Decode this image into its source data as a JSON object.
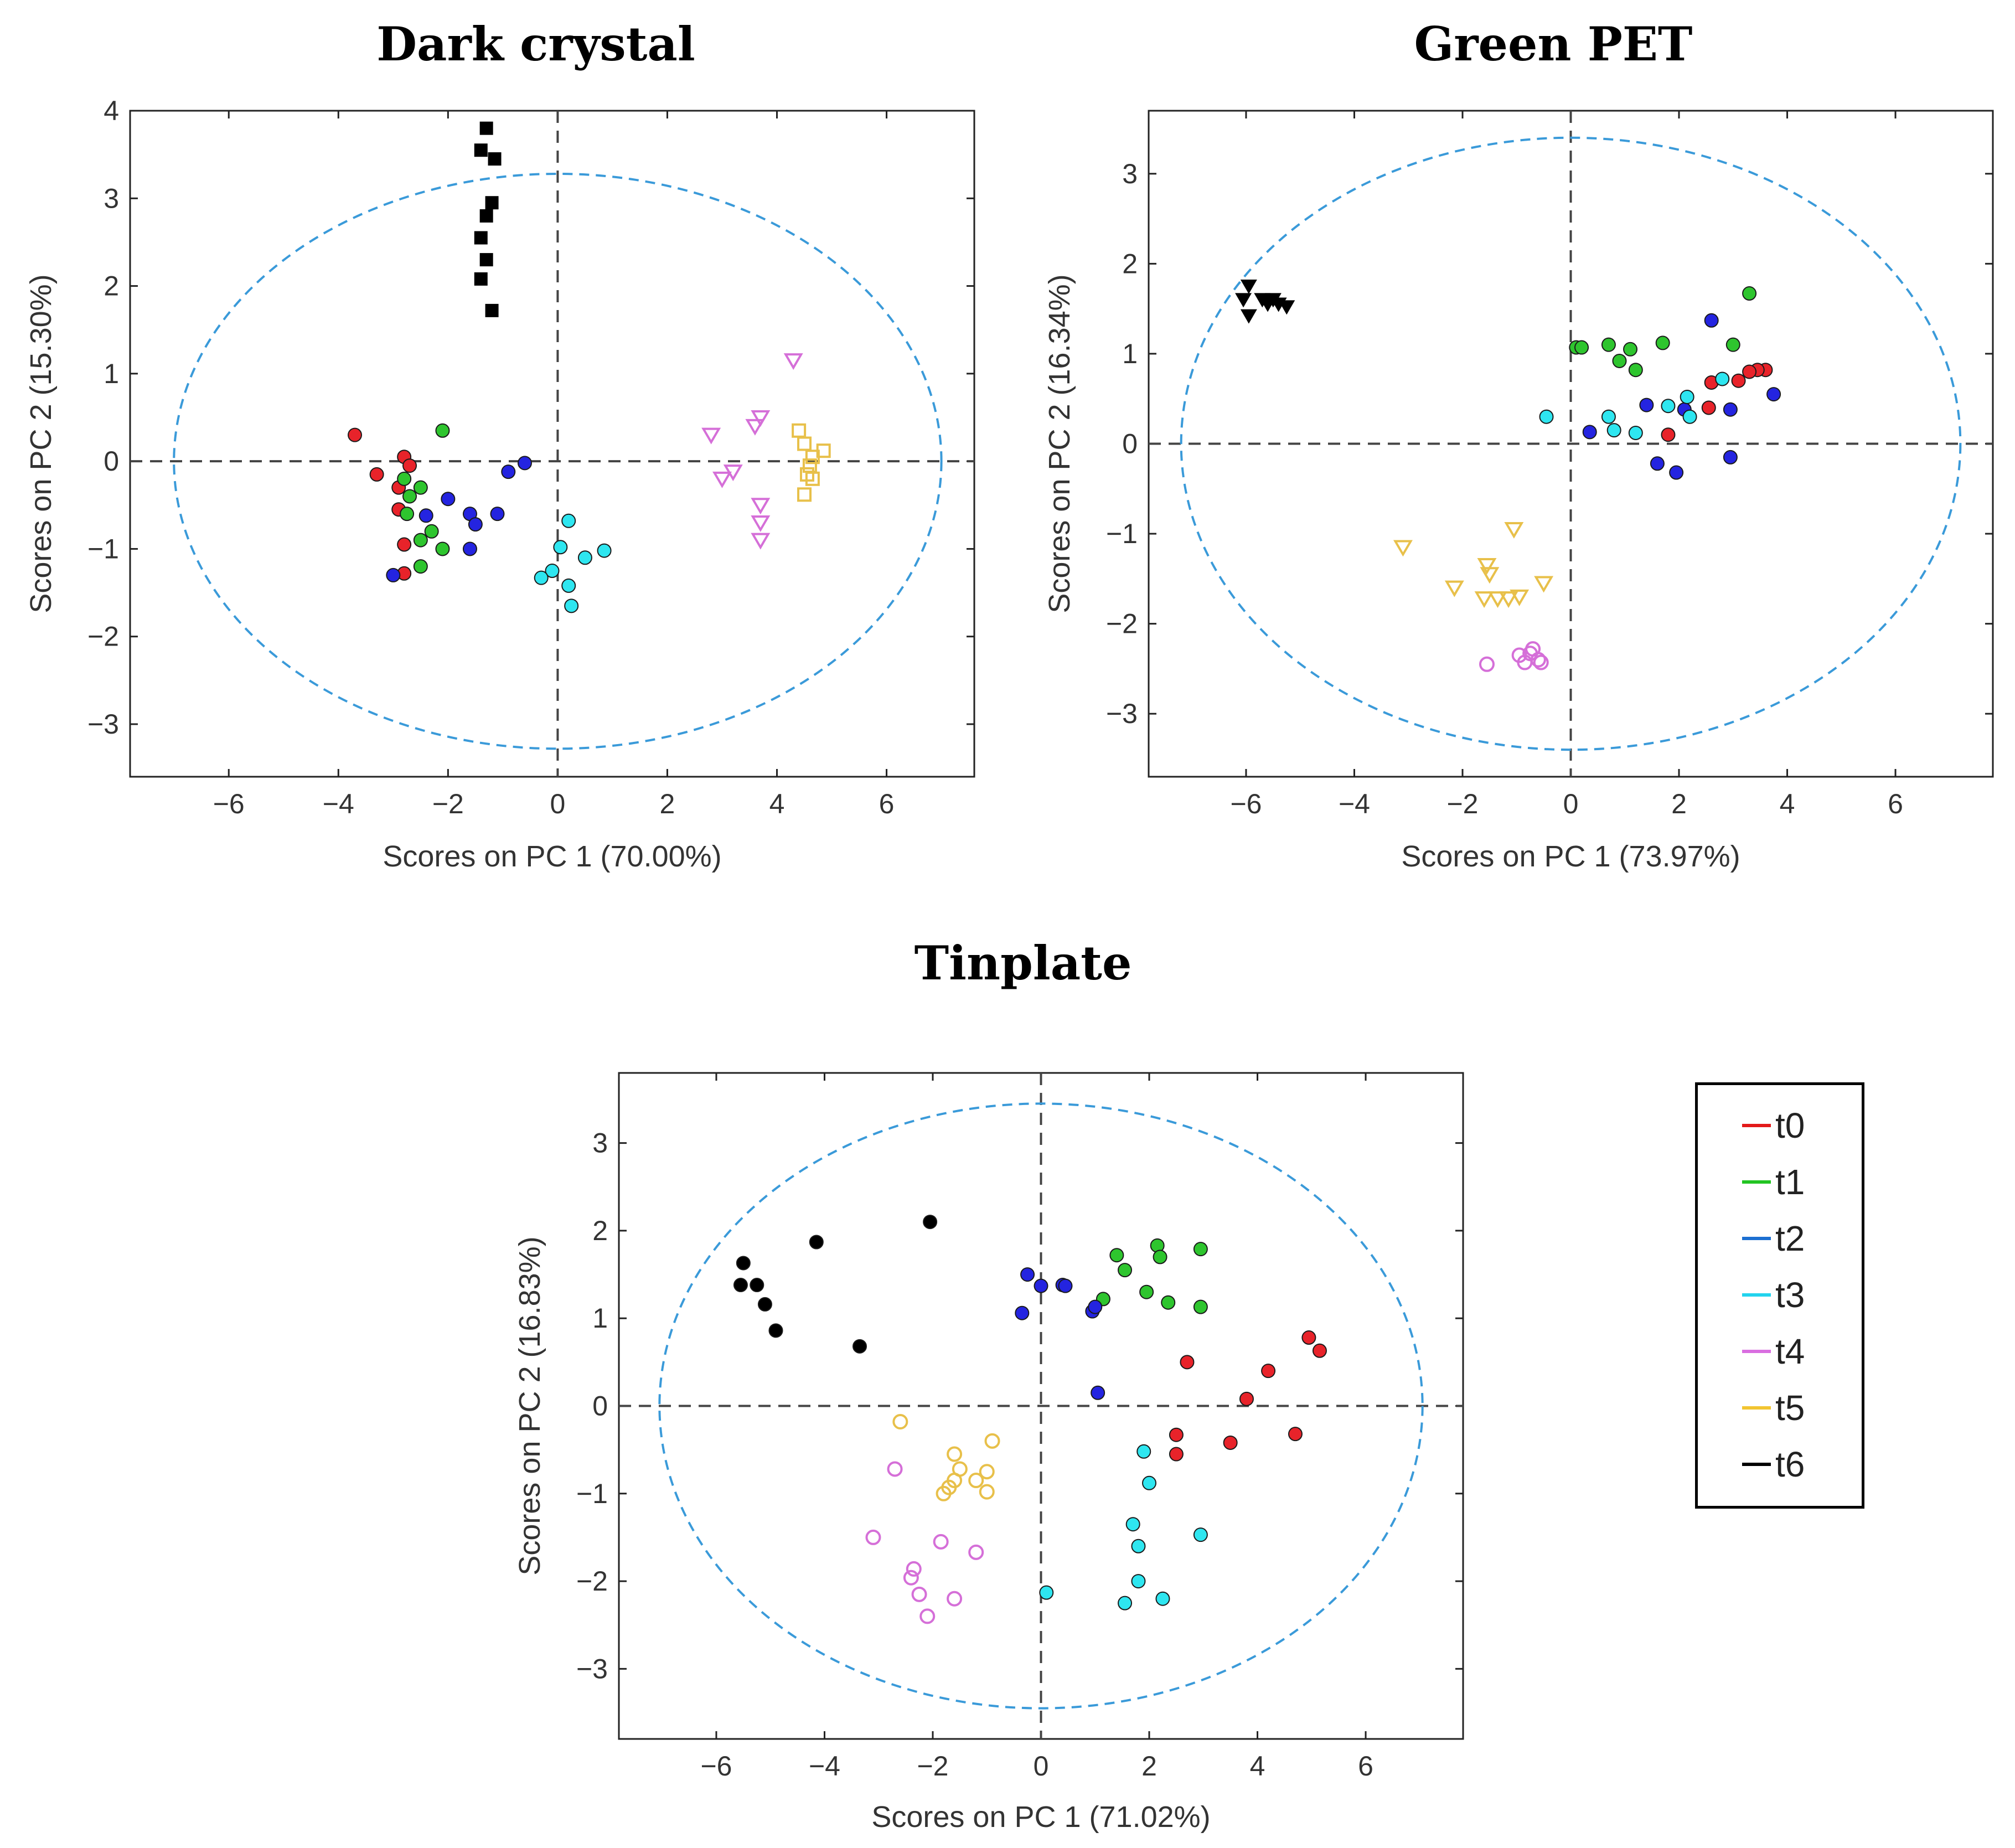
{
  "legend": {
    "items": [
      {
        "label": "t0",
        "color": "#e31a1a"
      },
      {
        "label": "t1",
        "color": "#22c422"
      },
      {
        "label": "t2",
        "color": "#1c6fd1"
      },
      {
        "label": "t3",
        "color": "#22d3ee"
      },
      {
        "label": "t4",
        "color": "#d96ee0"
      },
      {
        "label": "t5",
        "color": "#f2c531"
      },
      {
        "label": "t6",
        "color": "#000000"
      }
    ]
  },
  "chart_data": [
    {
      "type": "scatter",
      "title": "Dark crystal",
      "xlabel": "Scores on PC 1 (70.00%)",
      "ylabel": "Scores on PC 2 (15.30%)",
      "xlim": [
        -7.8,
        7.6
      ],
      "ylim": [
        -3.6,
        4.0
      ],
      "xticks": [
        -6,
        -4,
        -2,
        0,
        2,
        4,
        6
      ],
      "yticks": [
        4,
        3,
        2,
        1,
        0,
        -1,
        -2,
        -3
      ],
      "ellipse": {
        "rx": 7.0,
        "ry": 3.28
      },
      "series": [
        {
          "name": "t0",
          "marker": "circle",
          "fill": "#e8232a",
          "x": [
            -3.7,
            -3.3,
            -2.8,
            -2.7,
            -2.9,
            -2.8,
            -2.8,
            -2.9
          ],
          "y": [
            0.3,
            -0.15,
            0.05,
            -0.05,
            -0.55,
            -0.95,
            -1.28,
            -0.3
          ]
        },
        {
          "name": "t1",
          "marker": "circle",
          "fill": "#2ec52e",
          "x": [
            -2.1,
            -2.5,
            -2.8,
            -2.7,
            -2.75,
            -2.3,
            -2.5,
            -2.1,
            -2.5
          ],
          "y": [
            0.35,
            -0.3,
            -0.2,
            -0.4,
            -0.6,
            -0.8,
            -0.9,
            -1.0,
            -1.2
          ],
          "extra": true
        },
        {
          "name": "t2",
          "marker": "circle",
          "fill": "#2424e0",
          "x": [
            -0.6,
            -0.9,
            -2.0,
            -2.4,
            -1.6,
            -1.5,
            -1.1,
            -1.6,
            -3.0
          ],
          "y": [
            -0.02,
            -0.12,
            -0.43,
            -0.62,
            -0.6,
            -0.72,
            -0.6,
            -1.0,
            -1.3
          ]
        },
        {
          "name": "t3",
          "marker": "circle",
          "fill": "#2ee6f0",
          "x": [
            0.2,
            0.05,
            0.85,
            0.5,
            -0.1,
            -0.3,
            0.2,
            0.25
          ],
          "y": [
            -0.68,
            -0.98,
            -1.02,
            -1.1,
            -1.25,
            -1.33,
            -1.42,
            -1.65
          ]
        },
        {
          "name": "t4",
          "marker": "triangle-down-open",
          "stroke": "#d56fd8",
          "x": [
            4.3,
            2.8,
            3.7,
            3.6,
            3.2,
            3.0,
            3.7,
            3.7,
            3.7
          ],
          "y": [
            1.15,
            0.3,
            0.5,
            0.4,
            -0.12,
            -0.2,
            -0.5,
            -0.7,
            -0.9
          ]
        },
        {
          "name": "t5",
          "marker": "square-open",
          "stroke": "#e8c04a",
          "x": [
            4.4,
            4.5,
            4.85,
            4.65,
            4.6,
            4.55,
            4.65,
            4.5
          ],
          "y": [
            0.35,
            0.2,
            0.12,
            0.05,
            -0.05,
            -0.15,
            -0.2,
            -0.38
          ]
        },
        {
          "name": "t6",
          "marker": "square",
          "fill": "#000000",
          "x": [
            -1.3,
            -1.4,
            -1.15,
            -1.2,
            -1.3,
            -1.4,
            -1.3,
            -1.4,
            -1.2
          ],
          "y": [
            3.8,
            3.55,
            3.45,
            2.95,
            2.8,
            2.55,
            2.3,
            2.08,
            1.72
          ]
        }
      ]
    },
    {
      "type": "scatter",
      "title": "Green PET",
      "xlabel": "Scores on PC 1 (73.97%)",
      "ylabel": "Scores on PC 2 (16.34%)",
      "xlim": [
        -7.8,
        7.8
      ],
      "ylim": [
        -3.7,
        3.7
      ],
      "xticks": [
        -6,
        -4,
        -2,
        0,
        2,
        4,
        6
      ],
      "yticks": [
        3,
        2,
        1,
        0,
        -1,
        -2,
        -3
      ],
      "ellipse": {
        "rx": 7.2,
        "ry": 3.4
      },
      "series": [
        {
          "name": "t0",
          "marker": "circle",
          "fill": "#e8232a",
          "x": [
            3.6,
            3.45,
            3.3,
            3.1,
            2.6,
            2.55,
            1.8
          ],
          "y": [
            0.82,
            0.82,
            0.8,
            0.7,
            0.68,
            0.4,
            0.1
          ]
        },
        {
          "name": "t1",
          "marker": "circle",
          "fill": "#2ec52e",
          "x": [
            3.3,
            0.1,
            0.2,
            0.7,
            1.1,
            1.7,
            3.0,
            0.9,
            1.2
          ],
          "y": [
            1.67,
            1.07,
            1.07,
            1.1,
            1.05,
            1.12,
            1.1,
            0.92,
            0.82
          ]
        },
        {
          "name": "t2",
          "marker": "circle",
          "fill": "#2424e0",
          "x": [
            2.6,
            3.75,
            2.95,
            1.4,
            2.1,
            0.35,
            1.6,
            1.95,
            2.95
          ],
          "y": [
            1.37,
            0.55,
            0.38,
            0.43,
            0.38,
            0.13,
            -0.22,
            -0.32,
            -0.15
          ]
        },
        {
          "name": "t3",
          "marker": "circle",
          "fill": "#2ee6f0",
          "x": [
            2.8,
            2.15,
            1.8,
            2.2,
            -0.45,
            0.7,
            0.8,
            1.2
          ],
          "y": [
            0.72,
            0.52,
            0.42,
            0.3,
            0.3,
            0.3,
            0.15,
            0.12
          ]
        },
        {
          "name": "t4",
          "marker": "circle-open",
          "stroke": "#d56fd8",
          "x": [
            -0.7,
            -0.75,
            -0.95,
            -0.6,
            -0.55,
            -0.85,
            -1.55
          ],
          "y": [
            -2.28,
            -2.33,
            -2.35,
            -2.4,
            -2.43,
            -2.43,
            -2.45
          ]
        },
        {
          "name": "t5",
          "marker": "triangle-down-open",
          "stroke": "#e8c04a",
          "x": [
            -3.1,
            -1.05,
            -1.55,
            -1.5,
            -2.15,
            -0.5,
            -1.6,
            -1.35,
            -0.95,
            -1.15
          ],
          "y": [
            -1.15,
            -0.95,
            -1.35,
            -1.45,
            -1.6,
            -1.55,
            -1.72,
            -1.72,
            -1.7,
            -1.72
          ]
        },
        {
          "name": "t6",
          "marker": "triangle-down",
          "fill": "#000000",
          "x": [
            -5.95,
            -6.05,
            -5.7,
            -5.5,
            -5.4,
            -5.25,
            -5.95,
            -5.6
          ],
          "y": [
            1.75,
            1.6,
            1.6,
            1.6,
            1.55,
            1.52,
            1.42,
            1.55
          ]
        }
      ]
    },
    {
      "type": "scatter",
      "title": "Tinplate",
      "xlabel": "Scores on PC 1 (71.02%)",
      "ylabel": "Scores on PC 2 (16.83%)",
      "xlim": [
        -7.8,
        7.8
      ],
      "ylim": [
        -3.8,
        3.8
      ],
      "xticks": [
        -6,
        -4,
        -2,
        0,
        2,
        4,
        6
      ],
      "yticks": [
        3,
        2,
        1,
        0,
        -1,
        -2,
        -3
      ],
      "ellipse": {
        "rx": 7.05,
        "ry": 3.45
      },
      "series": [
        {
          "name": "t0",
          "marker": "circle",
          "fill": "#e8232a",
          "x": [
            4.95,
            5.15,
            2.7,
            4.2,
            3.8,
            2.5,
            3.5,
            4.7,
            2.5
          ],
          "y": [
            0.78,
            0.63,
            0.5,
            0.4,
            0.08,
            -0.33,
            -0.42,
            -0.32,
            -0.55
          ]
        },
        {
          "name": "t1",
          "marker": "circle",
          "fill": "#2ec52e",
          "x": [
            2.15,
            1.4,
            2.2,
            2.95,
            1.55,
            1.95,
            2.35,
            2.95,
            1.15
          ],
          "y": [
            1.83,
            1.72,
            1.7,
            1.79,
            1.55,
            1.3,
            1.18,
            1.13,
            1.22
          ]
        },
        {
          "name": "t2",
          "marker": "circle",
          "fill": "#2424e0",
          "x": [
            -0.25,
            0.0,
            0.4,
            0.45,
            0.95,
            1.0,
            -0.35,
            1.05
          ],
          "y": [
            1.5,
            1.37,
            1.38,
            1.37,
            1.08,
            1.13,
            1.06,
            0.15
          ]
        },
        {
          "name": "t3",
          "marker": "circle",
          "fill": "#2ee6f0",
          "x": [
            1.9,
            2.0,
            1.7,
            1.8,
            2.95,
            1.8,
            0.1,
            1.55,
            2.25
          ],
          "y": [
            -0.52,
            -0.88,
            -1.35,
            -1.6,
            -1.47,
            -2.0,
            -2.13,
            -2.25,
            -2.2
          ]
        },
        {
          "name": "t4",
          "marker": "circle-open",
          "stroke": "#d56fd8",
          "x": [
            -2.7,
            -3.1,
            -1.85,
            -1.2,
            -2.35,
            -2.4,
            -2.25,
            -1.6,
            -2.1
          ],
          "y": [
            -0.72,
            -1.5,
            -1.55,
            -1.67,
            -1.86,
            -1.96,
            -2.15,
            -2.2,
            -2.4
          ]
        },
        {
          "name": "t5",
          "marker": "circle-open",
          "stroke": "#e8c04a",
          "x": [
            -2.6,
            -1.6,
            -0.9,
            -1.5,
            -1.6,
            -1.0,
            -1.7,
            -1.8,
            -1.2,
            -1.0
          ],
          "y": [
            -0.18,
            -0.55,
            -0.4,
            -0.72,
            -0.85,
            -0.75,
            -0.93,
            -1.0,
            -0.85,
            -0.98
          ]
        },
        {
          "name": "t6",
          "marker": "circle",
          "fill": "#000000",
          "x": [
            -2.05,
            -5.5,
            -4.15,
            -5.55,
            -5.25,
            -5.1,
            -4.9,
            -3.35
          ],
          "y": [
            2.1,
            1.63,
            1.87,
            1.38,
            1.38,
            1.16,
            0.86,
            0.68
          ]
        }
      ]
    }
  ]
}
